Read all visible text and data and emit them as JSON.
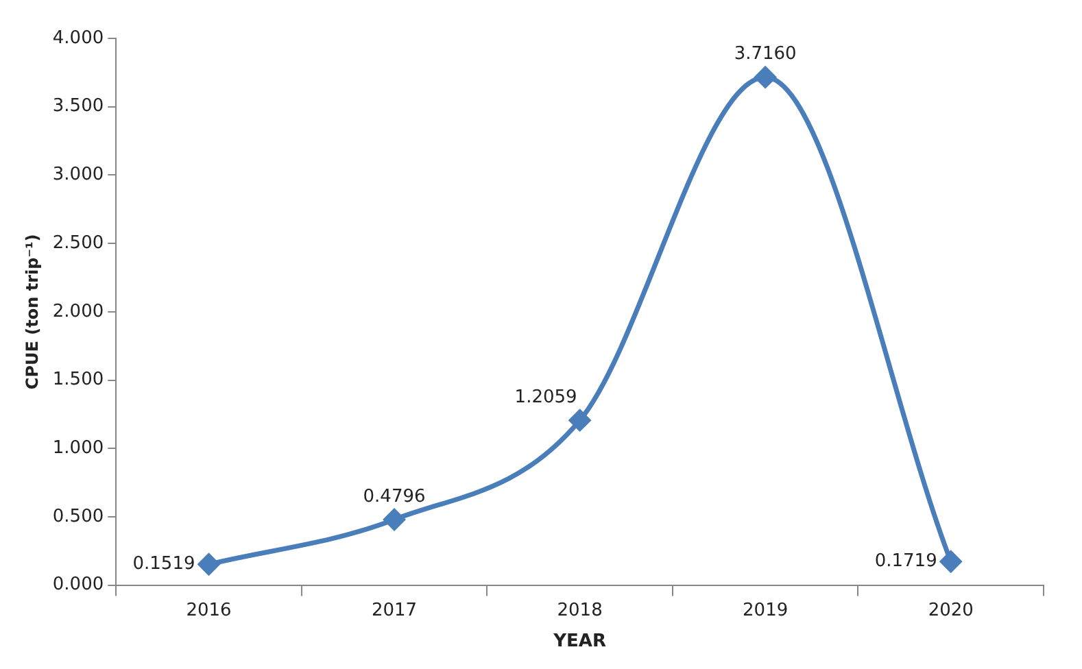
{
  "chart_data": {
    "type": "line",
    "xlabel": "YEAR",
    "ylabel": "CPUE (ton trip⁻¹)",
    "categories": [
      "2016",
      "2017",
      "2018",
      "2019",
      "2020"
    ],
    "series": [
      {
        "color": "#4a7ebb",
        "values": [
          0.1519,
          0.4796,
          1.2059,
          3.716,
          0.1719
        ],
        "value_labels": [
          "0.1519",
          "0.4796",
          "1.2059",
          "3.7160",
          "0.1719"
        ]
      }
    ],
    "ylim": [
      0,
      4
    ],
    "yticks": [
      {
        "value": 0,
        "label": "0.000"
      },
      {
        "value": 0.5,
        "label": "0.500"
      },
      {
        "value": 1,
        "label": "1.000"
      },
      {
        "value": 1.5,
        "label": "1.500"
      },
      {
        "value": 2,
        "label": "2.000"
      },
      {
        "value": 2.5,
        "label": "2.500"
      },
      {
        "value": 3,
        "label": "3.000"
      },
      {
        "value": 3.5,
        "label": "3.500"
      },
      {
        "value": 4,
        "label": "4.000"
      }
    ],
    "grid": false,
    "legend": false,
    "marker": "diamond",
    "line_style": "solid"
  }
}
